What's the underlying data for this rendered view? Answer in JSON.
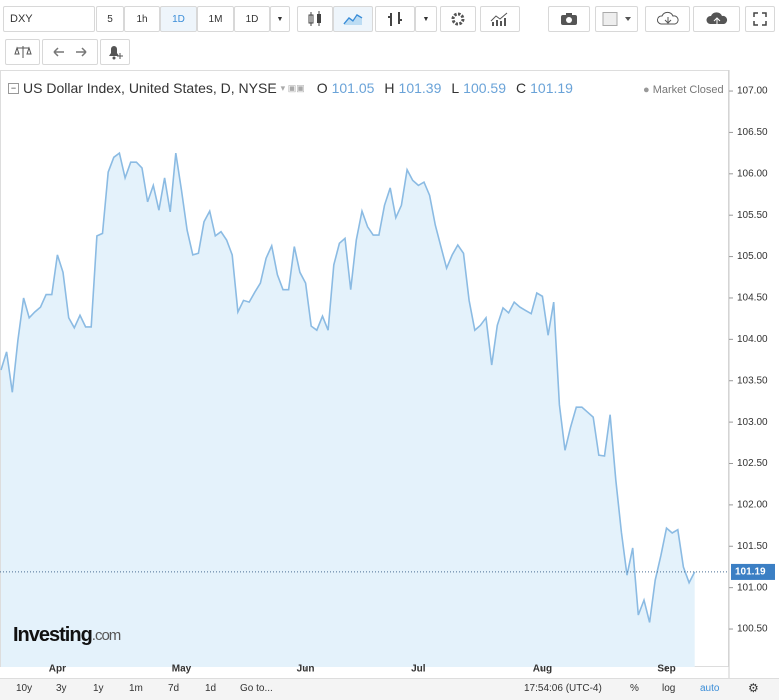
{
  "toolbar": {
    "symbol": "DXY",
    "intervals": [
      "5",
      "1h",
      "1D",
      "1M"
    ],
    "interval_select": "1D"
  },
  "legend": {
    "title": "US Dollar Index, United States, D, NYSE",
    "ohlc": [
      {
        "key": "O",
        "value": 101.05
      },
      {
        "key": "H",
        "value": 101.39
      },
      {
        "key": "L",
        "value": 100.59
      },
      {
        "key": "C",
        "value": 101.19
      }
    ],
    "status": "Market Closed"
  },
  "chart_data": {
    "type": "area",
    "color": "#8bbbe3",
    "fill": "#e4f2fb",
    "categories": [
      null,
      null,
      null,
      null,
      null,
      null,
      null,
      null,
      null,
      null,
      "Apr",
      null,
      null,
      null,
      null,
      null,
      null,
      null,
      null,
      null,
      null,
      null,
      null,
      null,
      null,
      null,
      null,
      null,
      null,
      null,
      null,
      null,
      "May",
      null,
      null,
      null,
      null,
      null,
      null,
      null,
      null,
      null,
      null,
      null,
      null,
      null,
      null,
      null,
      null,
      null,
      null,
      null,
      null,
      null,
      "Jun",
      null,
      null,
      null,
      null,
      null,
      null,
      null,
      null,
      null,
      null,
      null,
      null,
      null,
      null,
      null,
      null,
      null,
      null,
      null,
      "Jul",
      null,
      null,
      null,
      null,
      null,
      null,
      null,
      null,
      null,
      null,
      null,
      null,
      null,
      null,
      null,
      null,
      null,
      null,
      null,
      null,
      null,
      "Aug",
      null,
      null,
      null,
      null,
      null,
      null,
      null,
      null,
      null,
      null,
      null,
      null,
      null,
      null,
      null,
      null,
      null,
      null,
      null,
      null,
      null,
      "Sep",
      null,
      null,
      null,
      null,
      null
    ],
    "values": [
      103.63,
      103.85,
      103.36,
      103.99,
      104.5,
      104.26,
      104.33,
      104.39,
      104.54,
      104.54,
      105.02,
      104.81,
      104.26,
      104.14,
      104.29,
      104.15,
      104.15,
      105.25,
      105.28,
      106.02,
      106.2,
      106.25,
      105.95,
      106.14,
      106.14,
      106.07,
      105.66,
      105.86,
      105.56,
      105.95,
      105.54,
      106.25,
      105.8,
      105.32,
      105.02,
      105.04,
      105.42,
      105.55,
      105.25,
      105.3,
      105.2,
      105.02,
      104.33,
      104.47,
      104.45,
      104.57,
      104.68,
      104.98,
      105.13,
      104.78,
      104.6,
      104.6,
      105.12,
      104.81,
      104.68,
      104.16,
      104.11,
      104.28,
      104.11,
      104.9,
      105.16,
      105.22,
      104.6,
      105.2,
      105.55,
      105.36,
      105.26,
      105.26,
      105.62,
      105.83,
      105.47,
      105.62,
      106.05,
      105.92,
      105.86,
      105.9,
      105.74,
      105.38,
      105.12,
      104.86,
      105.02,
      105.14,
      105.04,
      104.47,
      104.11,
      104.17,
      104.26,
      103.69,
      104.17,
      104.38,
      104.32,
      104.45,
      104.39,
      104.35,
      104.31,
      104.56,
      104.52,
      104.05,
      104.45,
      103.21,
      102.66,
      102.94,
      103.18,
      103.18,
      103.12,
      103.06,
      102.6,
      102.59,
      103.09,
      102.3,
      101.67,
      101.15,
      101.48,
      100.67,
      100.85,
      100.58,
      101.09,
      101.39,
      101.72,
      101.66,
      101.7,
      101.25,
      101.06,
      101.19
    ],
    "ylim": [
      100.15,
      107.23
    ],
    "yticks": [
      {
        "value": 100.5,
        "label": "100.50"
      },
      {
        "value": 101,
        "label": "101.00"
      },
      {
        "value": 101.5,
        "label": "101.50"
      },
      {
        "value": 102,
        "label": "102.00"
      },
      {
        "value": 102.5,
        "label": "102.50"
      },
      {
        "value": 103,
        "label": "103.00"
      },
      {
        "value": 103.5,
        "label": "103.50"
      },
      {
        "value": 104,
        "label": "104.00"
      },
      {
        "value": 104.5,
        "label": "104.50"
      },
      {
        "value": 105,
        "label": "105.00"
      },
      {
        "value": 105.5,
        "label": "105.50"
      },
      {
        "value": 106,
        "label": "106.00"
      },
      {
        "value": 106.5,
        "label": "106.50"
      },
      {
        "value": 107,
        "label": "107.00"
      }
    ],
    "last_price_color": "#3b7fc4"
  },
  "logo": {
    "brand": "Investing",
    "suffix": ".com"
  },
  "bottom": {
    "ranges": [
      "10y",
      "3y",
      "1y",
      "1m",
      "7d",
      "1d"
    ],
    "goto": "Go to...",
    "time": "17:54:06 (UTC-4)",
    "options": [
      "%",
      "log",
      "auto"
    ]
  }
}
